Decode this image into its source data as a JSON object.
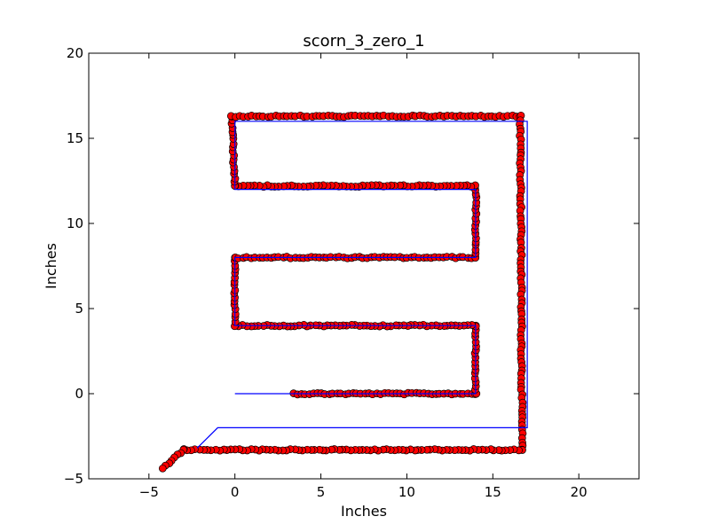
{
  "chart_data": {
    "type": "scatter",
    "title": "scorn_3_zero_1",
    "xlabel": "Inches",
    "ylabel": "Inches",
    "xlim": [
      -8.5,
      23.5
    ],
    "ylim": [
      -5,
      20
    ],
    "xticks": [
      -5,
      0,
      5,
      10,
      15,
      20
    ],
    "yticks": [
      -5,
      0,
      5,
      10,
      15,
      20
    ],
    "xtick_labels": [
      "−5",
      "0",
      "5",
      "10",
      "15",
      "20"
    ],
    "ytick_labels": [
      "−5",
      "0",
      "5",
      "10",
      "15",
      "20"
    ],
    "grid": false,
    "legend": "none",
    "series": [
      {
        "kind": "line",
        "color": "#0000ff",
        "points": [
          [
            0,
            0
          ],
          [
            14,
            0
          ],
          [
            14,
            4
          ],
          [
            0,
            4
          ],
          [
            0,
            8
          ],
          [
            14,
            8
          ],
          [
            14,
            12
          ],
          [
            0,
            12
          ],
          [
            0,
            16
          ],
          [
            17,
            16
          ],
          [
            17,
            -2
          ],
          [
            -1,
            -2
          ],
          [
            -2.2,
            -3.2
          ]
        ]
      },
      {
        "kind": "scatter",
        "color": "#ff0000",
        "edge_color": "#000000",
        "path_vertices": [
          [
            3.4,
            0
          ],
          [
            14,
            0
          ],
          [
            14,
            4
          ],
          [
            0,
            4
          ],
          [
            0,
            8
          ],
          [
            14,
            8
          ],
          [
            14,
            12.2
          ],
          [
            0,
            12.2
          ],
          [
            -0.2,
            16.3
          ],
          [
            16.6,
            16.3
          ],
          [
            16.7,
            -3.3
          ],
          [
            -3,
            -3.3
          ],
          [
            -4.2,
            -4.4
          ]
        ]
      }
    ]
  }
}
